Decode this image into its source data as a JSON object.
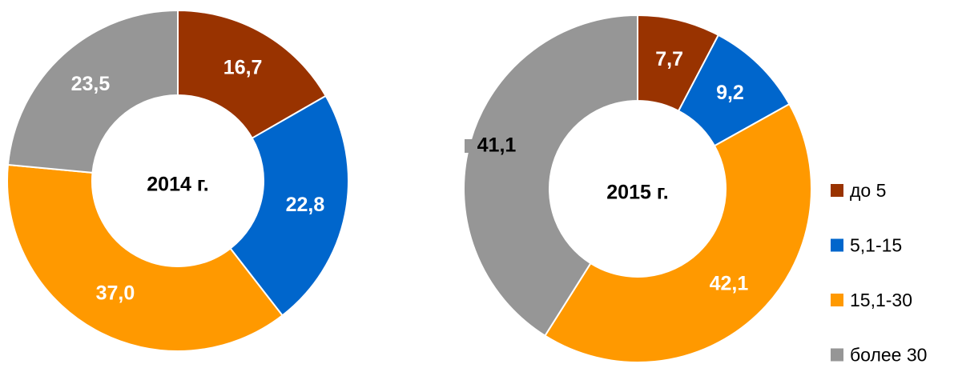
{
  "categories": [
    "до 5",
    "5,1-15",
    "15,1-30",
    "более 30"
  ],
  "colors": [
    "#993300",
    "#0066cc",
    "#ff9900",
    "#969696"
  ],
  "chart_data": [
    {
      "type": "pie",
      "title": "2014 г.",
      "values": [
        16.7,
        22.8,
        37.0,
        23.5
      ],
      "value_labels": [
        "16,7",
        "22,8",
        "37,0",
        "23,5"
      ]
    },
    {
      "type": "pie",
      "title": "2015 г.",
      "values": [
        7.7,
        9.2,
        42.1,
        41.1
      ],
      "value_labels": [
        "7,7",
        "9,2",
        "42,1",
        "41,1"
      ]
    }
  ]
}
